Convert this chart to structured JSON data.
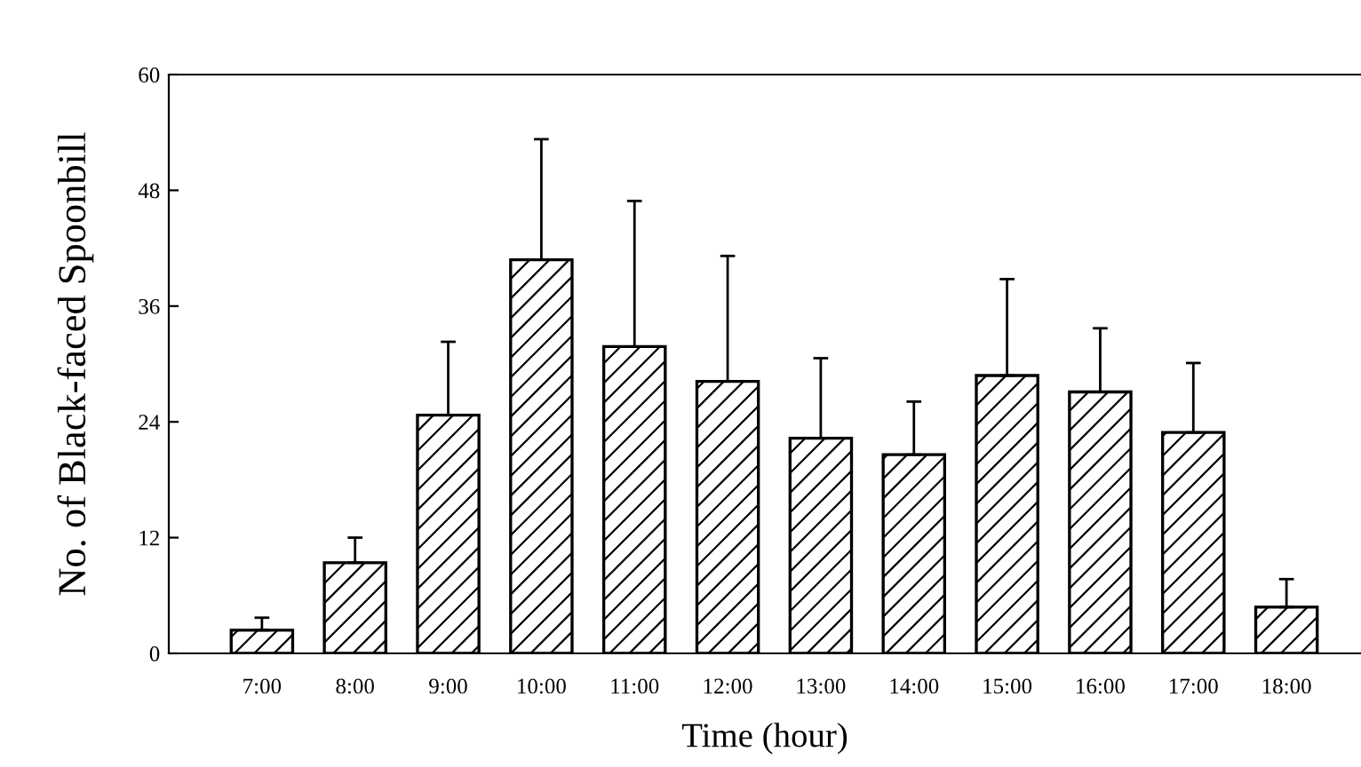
{
  "chart_data": {
    "type": "bar",
    "xlabel": "Time (hour)",
    "ylabel": "No. of Black-faced Spoonbill",
    "categories": [
      "7:00",
      "8:00",
      "9:00",
      "10:00",
      "11:00",
      "12:00",
      "13:00",
      "14:00",
      "15:00",
      "16:00",
      "17:00",
      "18:00"
    ],
    "values": [
      2.4,
      9.4,
      24.7,
      40.8,
      31.8,
      28.2,
      22.3,
      20.6,
      28.8,
      27.1,
      22.9,
      4.8
    ],
    "errors": [
      [
        2.4,
        3.7
      ],
      [
        9.4,
        12.0
      ],
      [
        24.7,
        32.3
      ],
      [
        40.8,
        53.3
      ],
      [
        31.8,
        46.9
      ],
      [
        28.2,
        41.2
      ],
      [
        22.3,
        30.6
      ],
      [
        20.6,
        26.1
      ],
      [
        28.8,
        38.8
      ],
      [
        27.1,
        33.7
      ],
      [
        22.9,
        30.1
      ],
      [
        4.8,
        7.7
      ]
    ],
    "color": "#000000",
    "ylim": [
      0,
      60
    ],
    "yticks": [
      0,
      12,
      24,
      36,
      48,
      60
    ],
    "grid": false
  }
}
